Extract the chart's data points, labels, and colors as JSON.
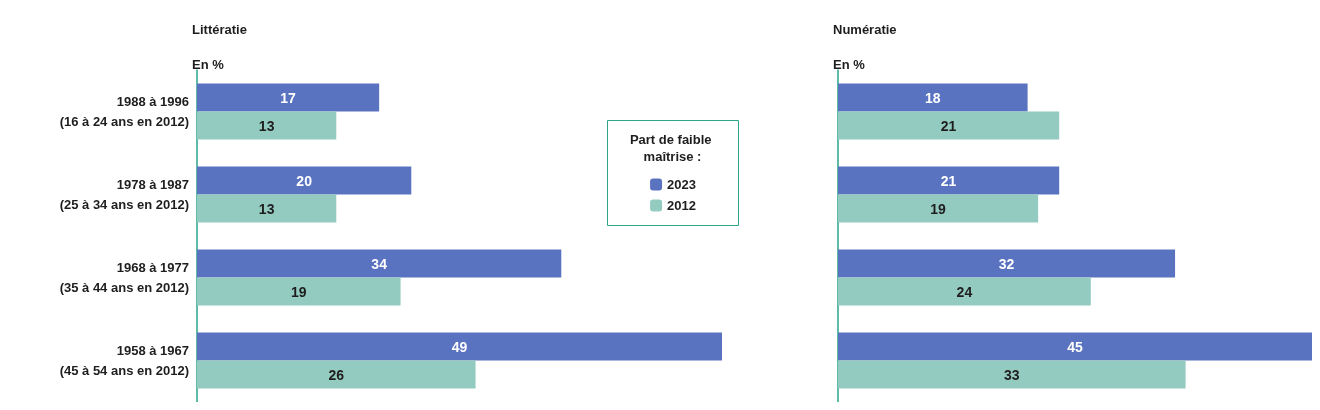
{
  "chart_data": [
    {
      "type": "bar",
      "orientation": "horizontal",
      "title": "Littératie",
      "subtitle": "En %",
      "legend_title": "Part de faible maîtrise :",
      "legend": "right",
      "data_labels": true,
      "tick_labels": "y",
      "categories": [
        "1988 à 1996\n(16 à 24 ans en 2012)",
        "1978 à 1987\n(25 à 34 ans en 2012)",
        "1968 à 1977\n(35 à 44 ans en 2012)",
        "1958 à 1967\n(45 à 54 ans en 2012)"
      ],
      "series": [
        {
          "name": "2023",
          "color": "#5a73c0",
          "values": [
            17,
            20,
            34,
            49
          ]
        },
        {
          "name": "2012",
          "color": "#94cbc0",
          "values": [
            13,
            13,
            19,
            26
          ]
        }
      ]
    },
    {
      "type": "bar",
      "orientation": "horizontal",
      "title": "Numératie",
      "subtitle": "En %",
      "data_labels": true,
      "tick_labels": false,
      "categories": [
        null,
        null,
        null,
        null
      ],
      "series": [
        {
          "color": "#5a73c0",
          "values": [
            18,
            21,
            32,
            45
          ]
        },
        {
          "color": "#94cbc0",
          "values": [
            21,
            19,
            24,
            33
          ]
        }
      ]
    }
  ]
}
